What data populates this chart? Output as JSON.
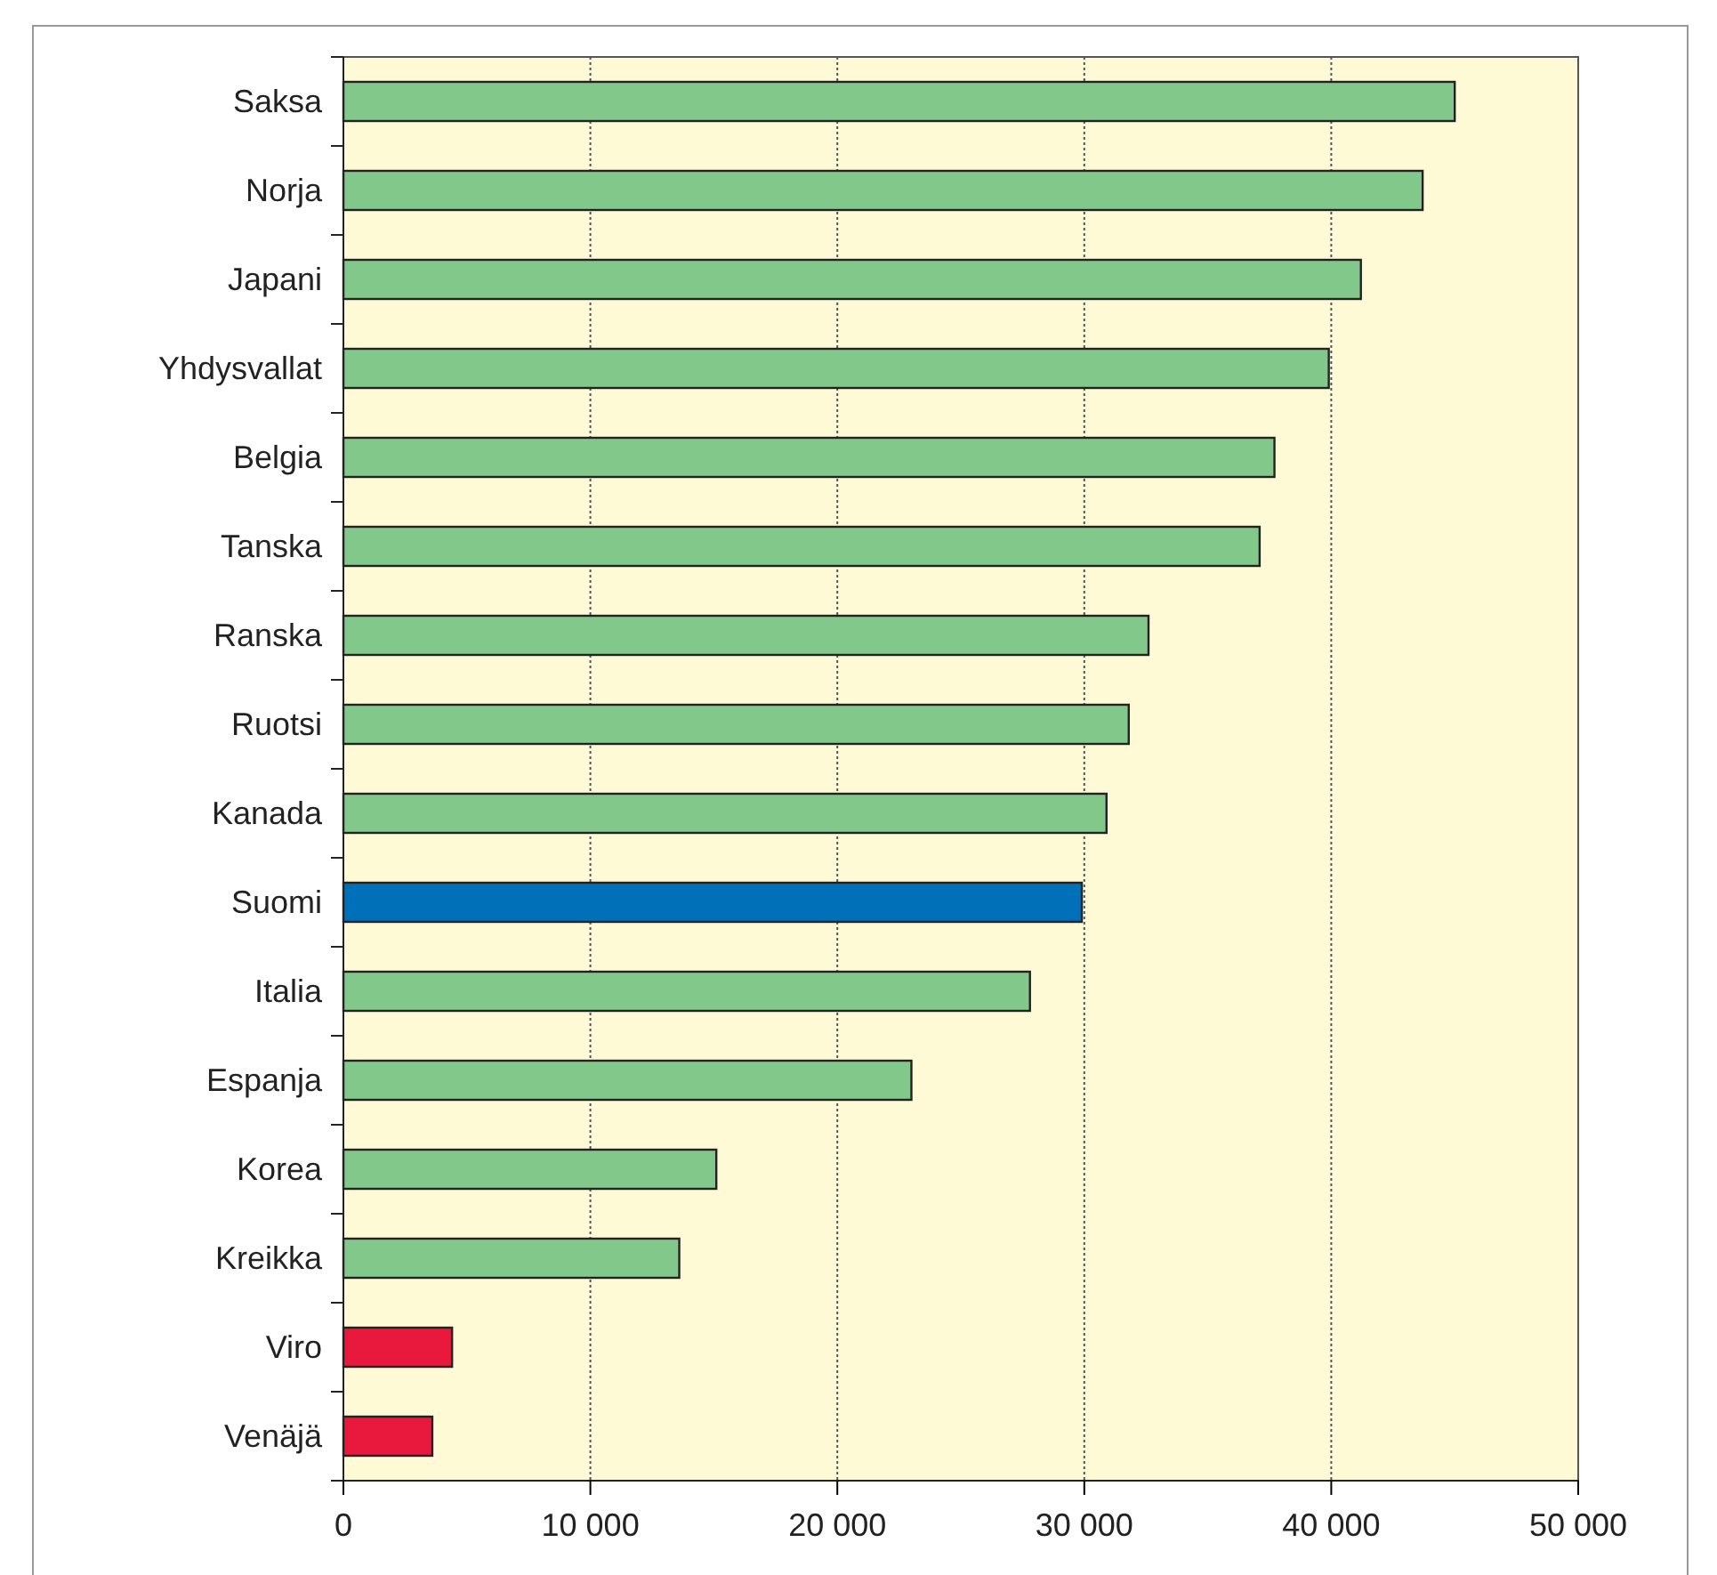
{
  "chart_data": {
    "type": "bar",
    "orientation": "horizontal",
    "categories": [
      "Saksa",
      "Norja",
      "Japani",
      "Yhdysvallat",
      "Belgia",
      "Tanska",
      "Ranska",
      "Ruotsi",
      "Kanada",
      "Suomi",
      "Italia",
      "Espanja",
      "Korea",
      "Kreikka",
      "Viro",
      "Venäjä"
    ],
    "values": [
      45000,
      43700,
      41200,
      39900,
      37700,
      37100,
      32600,
      31800,
      30900,
      29900,
      27800,
      23000,
      15100,
      13600,
      4400,
      3600
    ],
    "colors": [
      "#82c88a",
      "#82c88a",
      "#82c88a",
      "#82c88a",
      "#82c88a",
      "#82c88a",
      "#82c88a",
      "#82c88a",
      "#82c88a",
      "#0070b8",
      "#82c88a",
      "#82c88a",
      "#82c88a",
      "#82c88a",
      "#e8193c",
      "#e8193c"
    ],
    "xlim": [
      0,
      50000
    ],
    "xticks": [
      0,
      {
        "value": 10000,
        "label": "10 000"
      },
      {
        "value": 20000,
        "label": "20 000"
      },
      {
        "value": 30000,
        "label": "30 000"
      },
      {
        "value": 40000,
        "label": "40 000"
      },
      {
        "value": 50000,
        "label": "50 000"
      }
    ],
    "grid": "x"
  }
}
